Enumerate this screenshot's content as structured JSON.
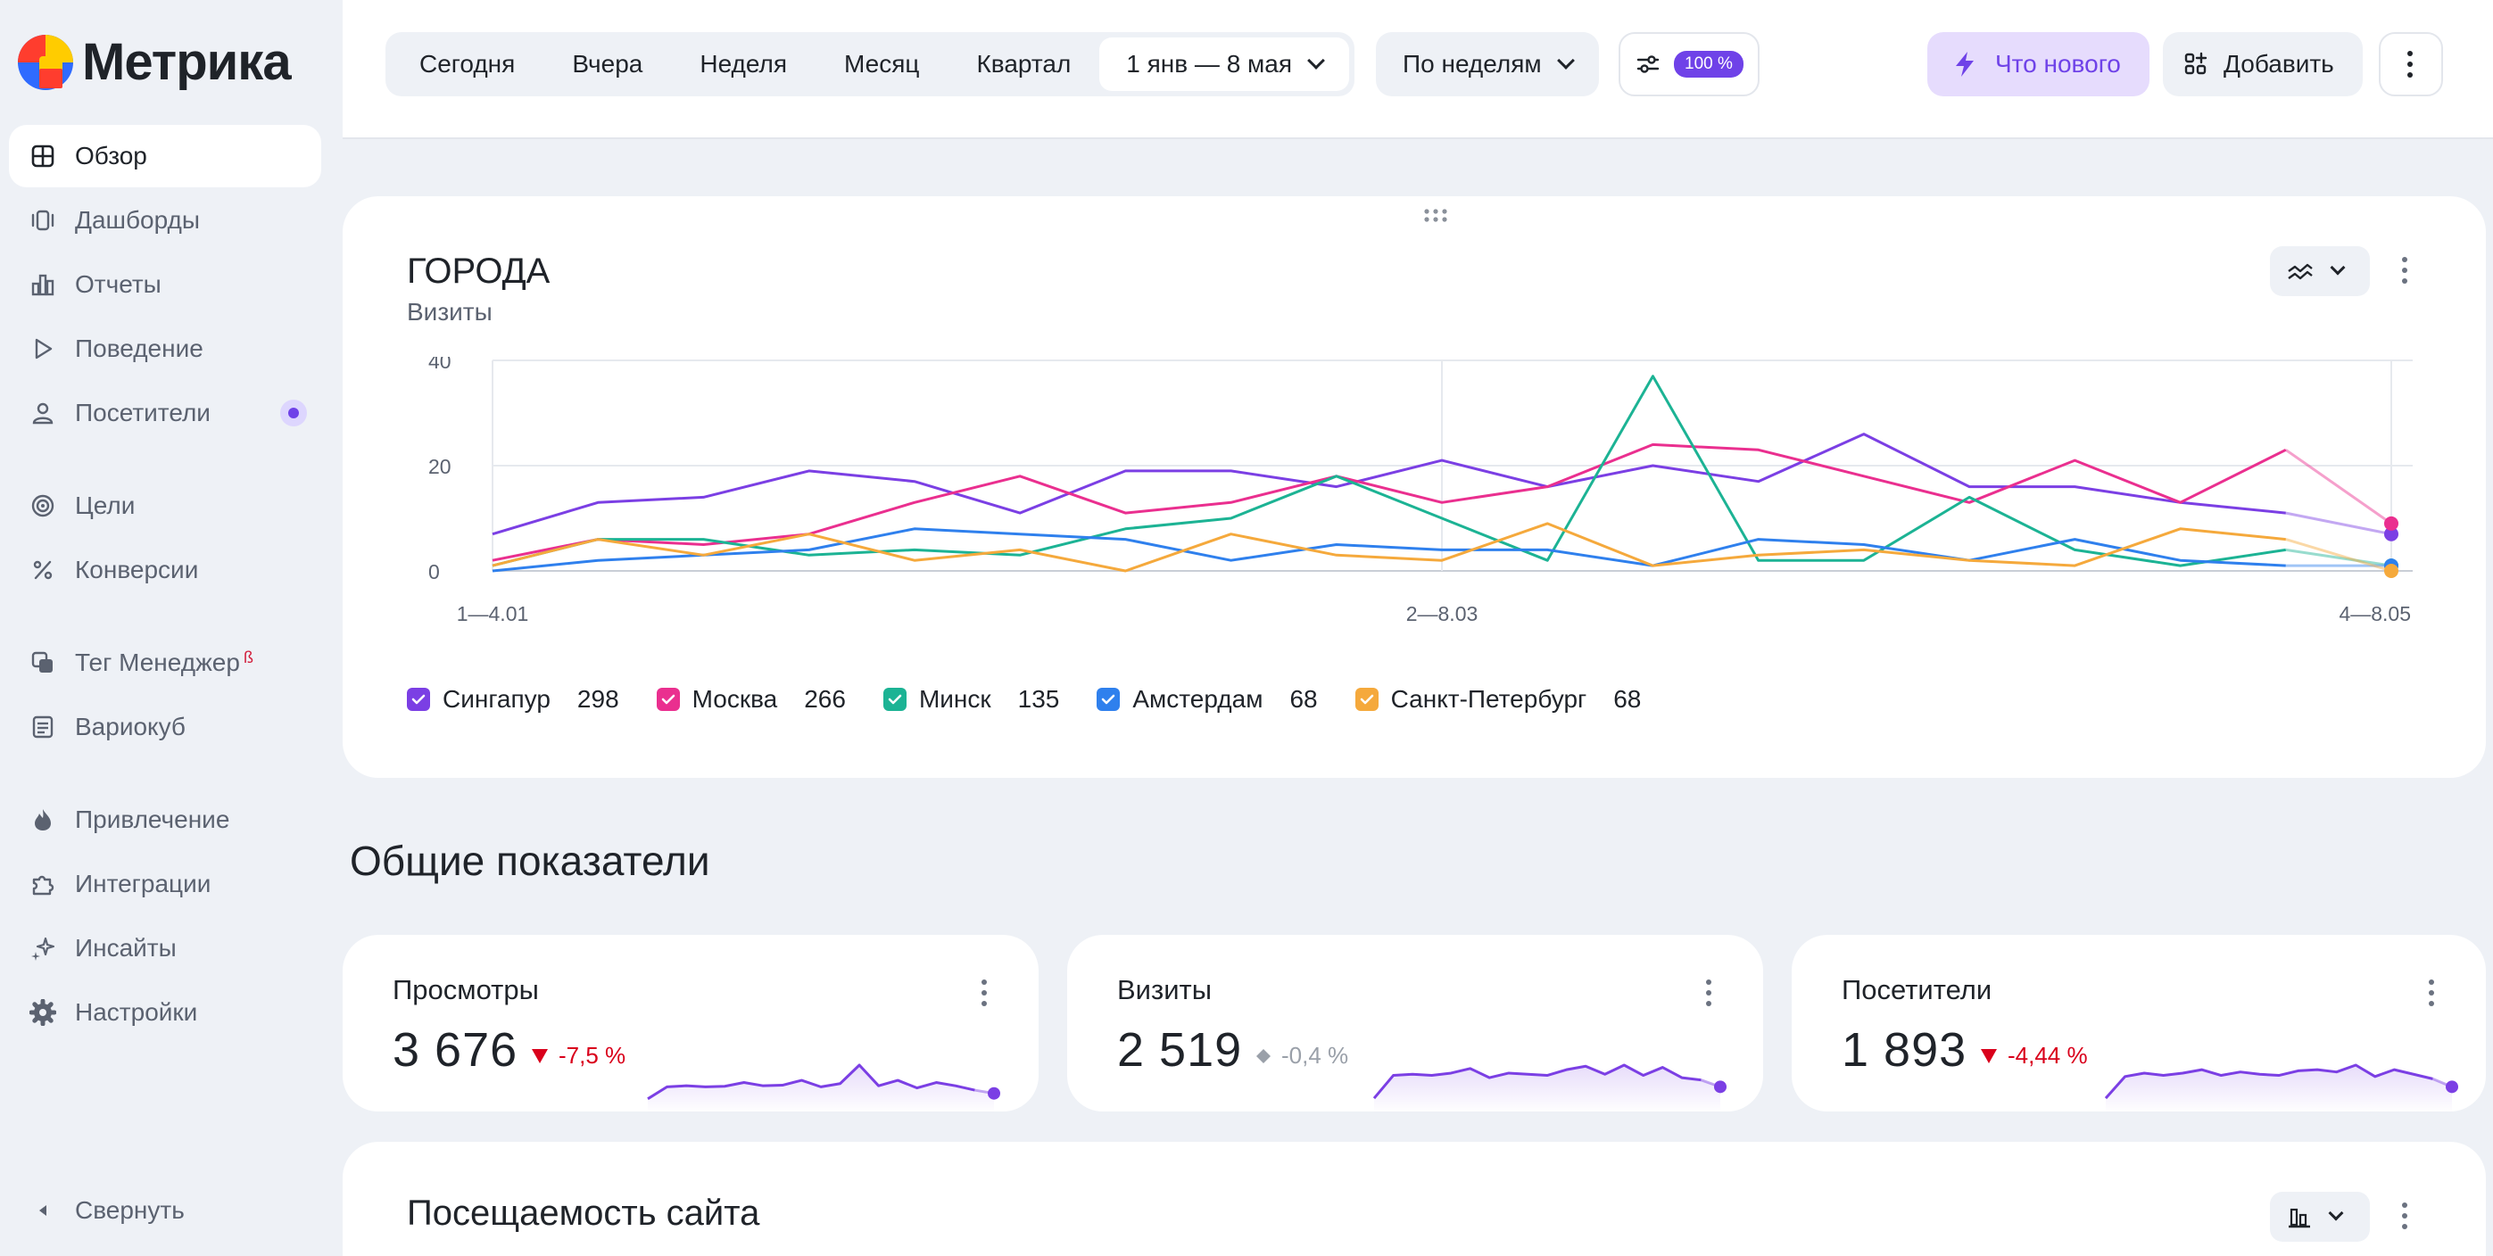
{
  "app": {
    "logo_text": "Метрика"
  },
  "sidebar": {
    "items": [
      {
        "label": "Обзор"
      },
      {
        "label": "Дашборды"
      },
      {
        "label": "Отчеты"
      },
      {
        "label": "Поведение"
      },
      {
        "label": "Посетители"
      },
      {
        "label": "Цели"
      },
      {
        "label": "Конверсии"
      },
      {
        "label": "Тег Менеджер",
        "sup": "ß"
      },
      {
        "label": "Вариокуб"
      },
      {
        "label": "Привлечение"
      },
      {
        "label": "Интеграции"
      },
      {
        "label": "Инсайты"
      },
      {
        "label": "Настройки"
      }
    ],
    "collapse_label": "Свернуть"
  },
  "header": {
    "periods": [
      "Сегодня",
      "Вчера",
      "Неделя",
      "Месяц",
      "Квартал"
    ],
    "date_range": "1 янв — 8 мая",
    "grouping": "По неделям",
    "sampling": "100 %",
    "whats_new": "Что нового",
    "add": "Добавить"
  },
  "cities_card": {
    "title": "ГОРОДА",
    "subtitle": "Визиты"
  },
  "chart_data": {
    "type": "line",
    "title": "ГОРОДА",
    "ylabel": "Визиты",
    "ylim": [
      0,
      40
    ],
    "yticks": [
      "0",
      "20",
      "40"
    ],
    "xtick_labels": [
      "1—4.01",
      "2—8.03",
      "4—8.05"
    ],
    "grid": true,
    "legend_position": "bottom",
    "series": [
      {
        "name": "Сингапур",
        "total": "298",
        "color": "#7b3fe4",
        "values": [
          7,
          13,
          14,
          19,
          17,
          11,
          19,
          19,
          16,
          21,
          16,
          20,
          17,
          26,
          16,
          16,
          13,
          11,
          7
        ]
      },
      {
        "name": "Москва",
        "total": "266",
        "color": "#ea2f8f",
        "values": [
          2,
          6,
          5,
          7,
          13,
          18,
          11,
          13,
          18,
          13,
          16,
          24,
          23,
          18,
          13,
          21,
          13,
          23,
          9
        ]
      },
      {
        "name": "Минск",
        "total": "135",
        "color": "#1cb394",
        "values": [
          1,
          6,
          6,
          3,
          4,
          3,
          8,
          10,
          18,
          10,
          2,
          37,
          2,
          2,
          14,
          4,
          1,
          4,
          1
        ]
      },
      {
        "name": "Амстердам",
        "total": "68",
        "color": "#2f80ed",
        "values": [
          0,
          2,
          3,
          4,
          8,
          7,
          6,
          2,
          5,
          4,
          4,
          1,
          6,
          5,
          2,
          6,
          2,
          1,
          1
        ]
      },
      {
        "name": "Санкт-Петербург",
        "total": "68",
        "color": "#f5a93c",
        "values": [
          1,
          6,
          3,
          7,
          2,
          4,
          0,
          7,
          3,
          2,
          9,
          1,
          3,
          4,
          2,
          1,
          8,
          6,
          0
        ]
      }
    ]
  },
  "overview": {
    "title": "Общие показатели",
    "metrics": [
      {
        "label": "Просмотры",
        "value": "3 676",
        "delta": "-7,5 %",
        "trend": "down",
        "spark": [
          20,
          42,
          44,
          42,
          43,
          50,
          44,
          45,
          54,
          42,
          48,
          82,
          44,
          54,
          40,
          50,
          44,
          36,
          30
        ]
      },
      {
        "label": "Визиты",
        "value": "2 519",
        "delta": "-0,4 %",
        "trend": "flat",
        "spark": [
          20,
          60,
          62,
          60,
          64,
          72,
          56,
          64,
          62,
          60,
          70,
          76,
          62,
          78,
          60,
          74,
          56,
          52,
          40
        ]
      },
      {
        "label": "Посетители",
        "value": "1 893",
        "delta": "-4,44 %",
        "trend": "down",
        "spark": [
          20,
          58,
          64,
          60,
          64,
          70,
          60,
          66,
          62,
          60,
          68,
          70,
          66,
          78,
          58,
          70,
          62,
          54,
          40
        ]
      }
    ]
  },
  "traffic_card": {
    "title": "Посещаемость сайта"
  },
  "colors": {
    "accent": "#6f42e8",
    "negative": "#d9001b",
    "neutral": "#9aa0a9"
  }
}
